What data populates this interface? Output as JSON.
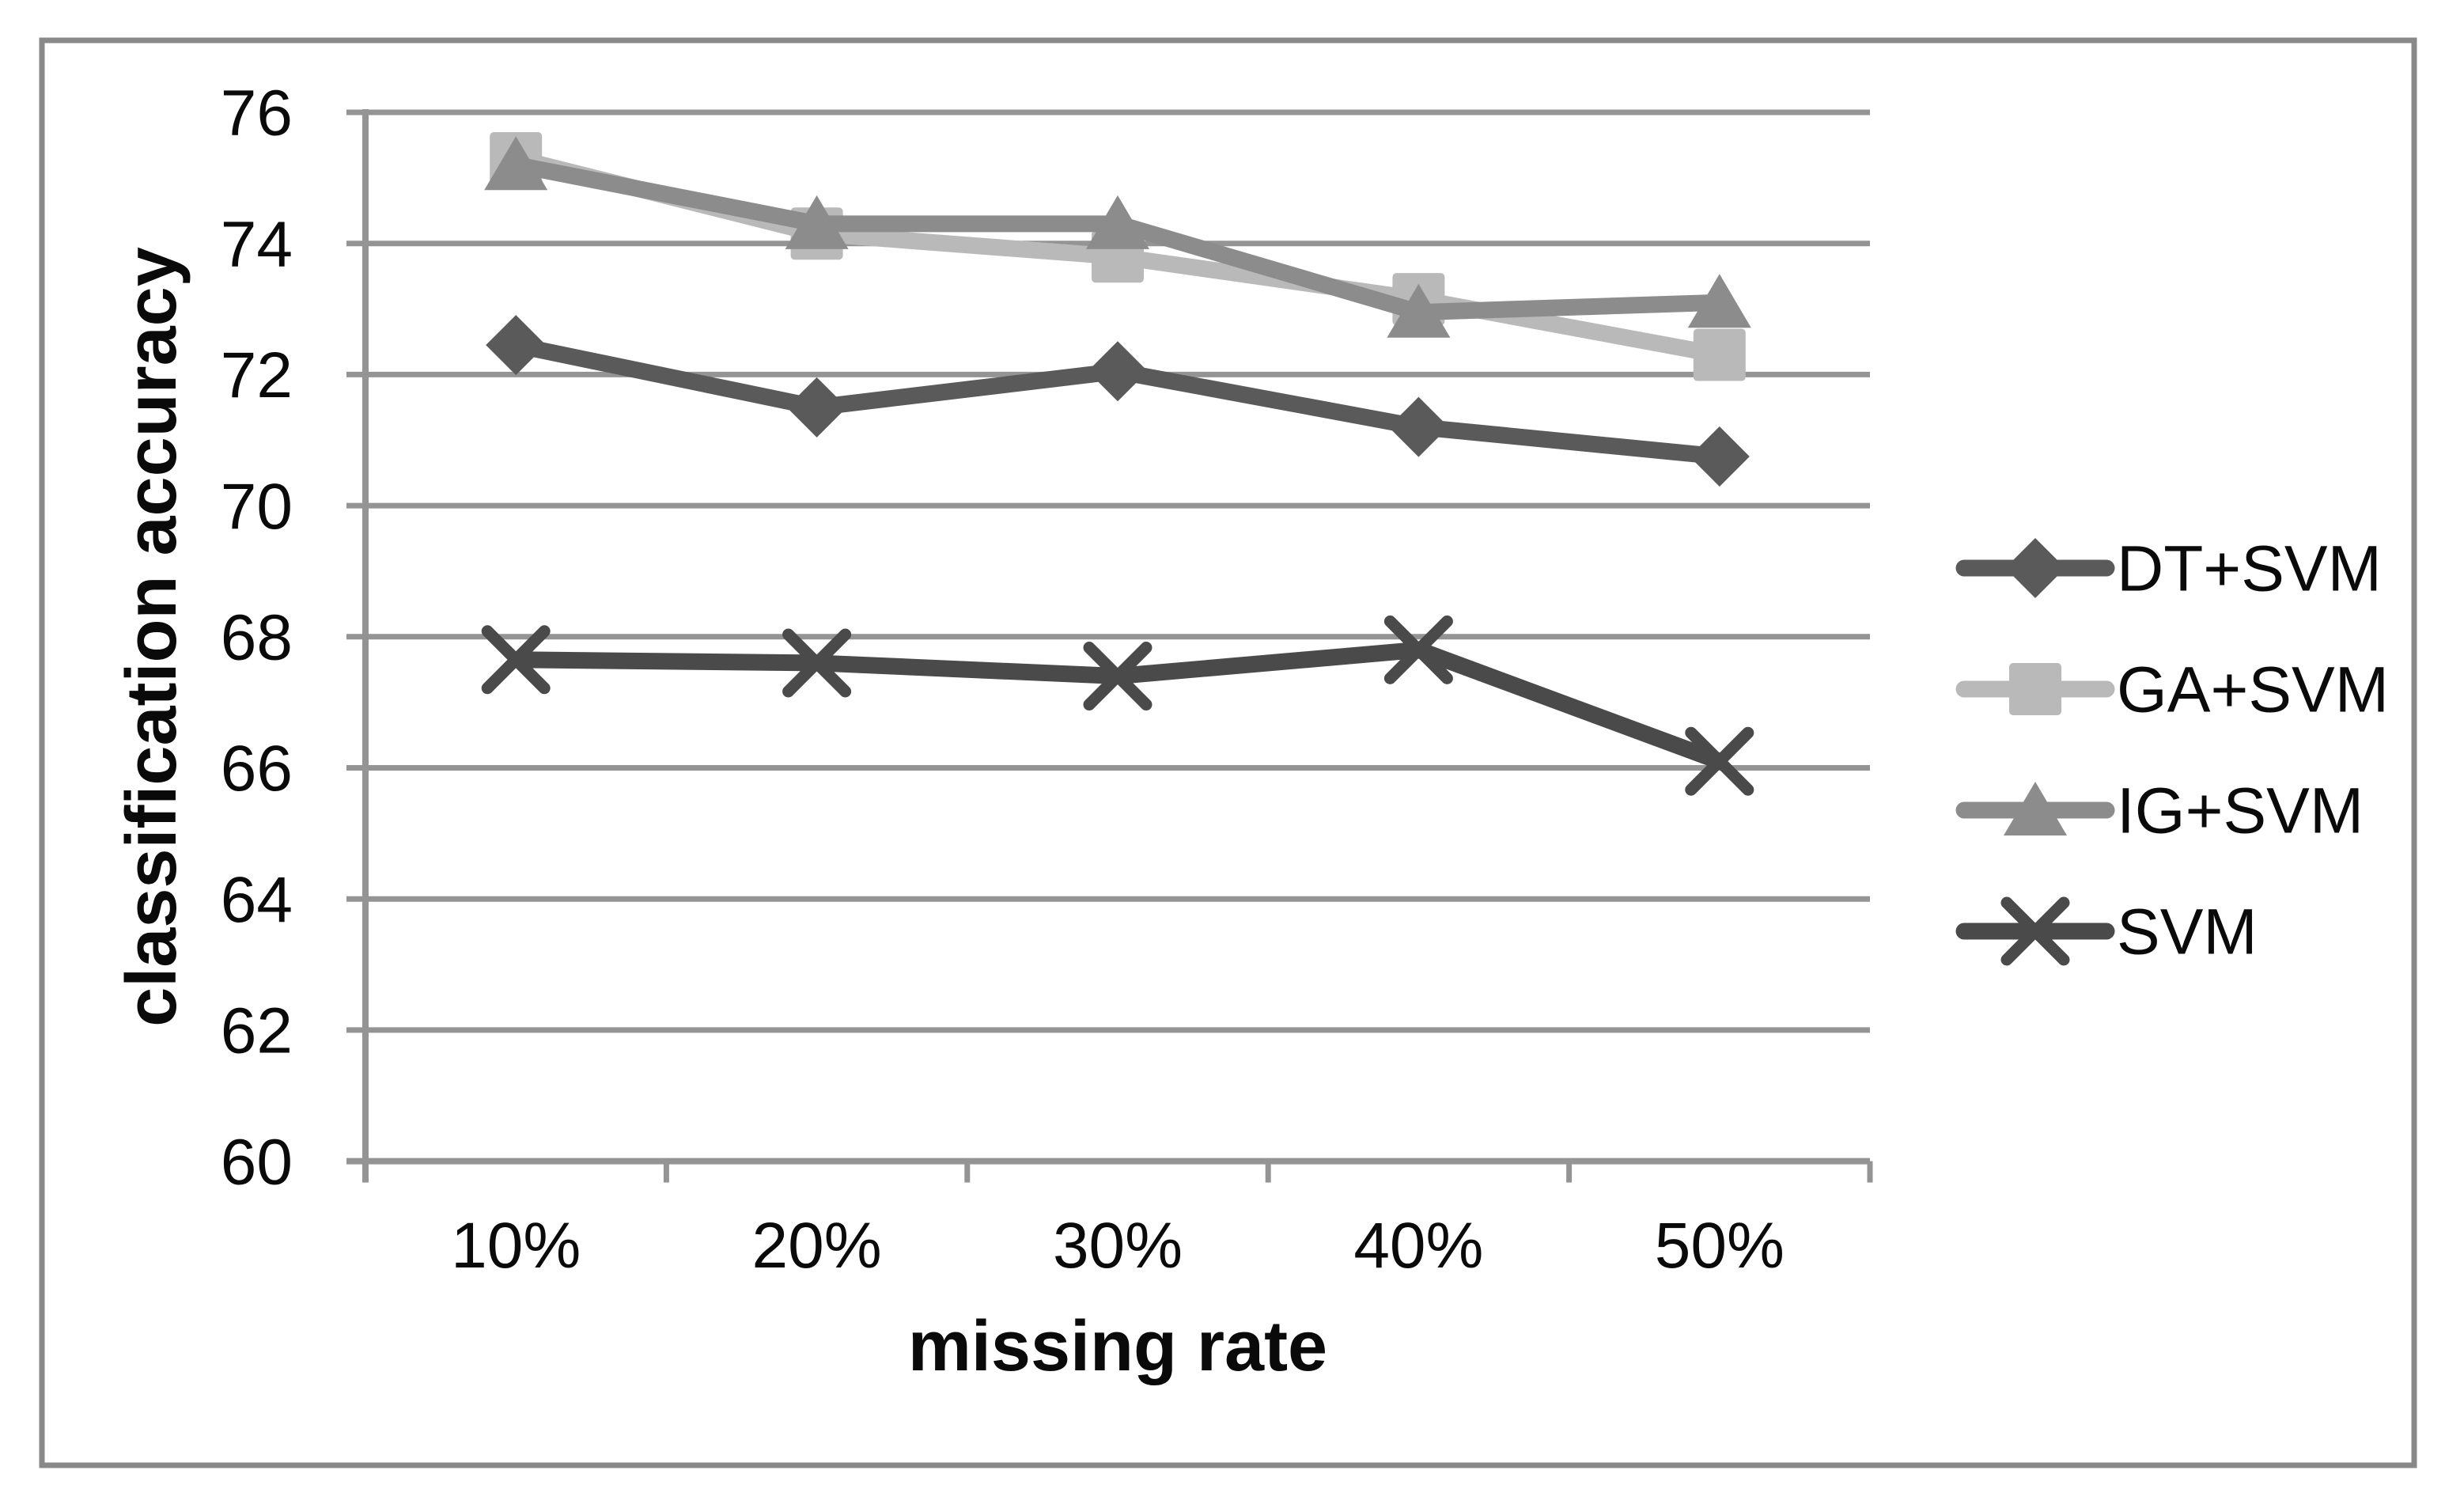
{
  "chart_data": {
    "type": "line",
    "title": "",
    "xlabel": "missing rate",
    "ylabel": "classification accuracy",
    "categories": [
      "10%",
      "20%",
      "30%",
      "40%",
      "50%"
    ],
    "series": [
      {
        "name": "DT+SVM",
        "marker": "diamond",
        "color": "#5a5a5a",
        "values": [
          72.45,
          71.5,
          72.05,
          71.2,
          70.75
        ]
      },
      {
        "name": "GA+SVM",
        "marker": "square",
        "color": "#b9b9b9",
        "values": [
          75.3,
          74.15,
          73.8,
          73.15,
          72.3
        ]
      },
      {
        "name": "IG+SVM",
        "marker": "triangle",
        "color": "#8c8c8c",
        "values": [
          75.2,
          74.3,
          74.3,
          72.95,
          73.1
        ]
      },
      {
        "name": "SVM",
        "marker": "x",
        "color": "#4a4a4a",
        "values": [
          67.65,
          67.6,
          67.4,
          67.8,
          66.1
        ]
      }
    ],
    "ylim": [
      60,
      76
    ],
    "yticks": [
      60,
      62,
      64,
      66,
      68,
      70,
      72,
      74,
      76
    ],
    "grid": "horizontal",
    "legend_position": "right-middle"
  },
  "colors": {
    "grid": "#949494",
    "axis": "#949494",
    "border": "#898989",
    "text": "#0a0a0a",
    "background": "#ffffff"
  }
}
